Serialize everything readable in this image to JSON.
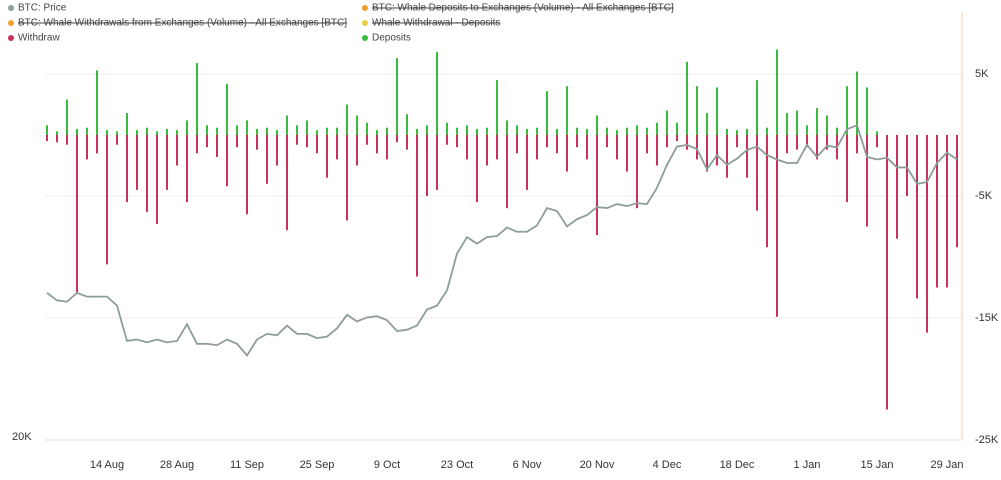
{
  "chart_data": {
    "type": "bar",
    "categories": [
      null,
      null,
      null,
      null,
      null,
      null,
      "14 Aug",
      null,
      null,
      null,
      null,
      null,
      null,
      "28 Aug",
      null,
      null,
      null,
      null,
      null,
      null,
      "11 Sep",
      null,
      null,
      null,
      null,
      null,
      null,
      "25 Sep",
      null,
      null,
      null,
      null,
      null,
      null,
      "9 Oct",
      null,
      null,
      null,
      null,
      null,
      null,
      "23 Oct",
      null,
      null,
      null,
      null,
      null,
      null,
      "6 Nov",
      null,
      null,
      null,
      null,
      null,
      null,
      "20 Nov",
      null,
      null,
      null,
      null,
      null,
      null,
      "4 Dec",
      null,
      null,
      null,
      null,
      null,
      null,
      "18 Dec",
      null,
      null,
      null,
      null,
      null,
      null,
      "1 Jan",
      null,
      null,
      null,
      null,
      null,
      null,
      "15 Jan",
      null,
      null,
      null,
      null,
      null,
      null,
      "29 Jan",
      null
    ],
    "series": [
      {
        "name": "BTC: Price",
        "color": "#8e9c9c",
        "type": "line",
        "axis": "y2",
        "values": [
          29700,
          29100,
          29000,
          29700,
          29400,
          29400,
          29400,
          28700,
          26100,
          26200,
          26000,
          26200,
          26000,
          26100,
          27300,
          25900,
          25900,
          25800,
          26200,
          25900,
          25100,
          26200,
          26600,
          26500,
          27200,
          26600,
          26600,
          26300,
          26400,
          27000,
          28000,
          27500,
          27800,
          27900,
          27600,
          26800,
          26900,
          27200,
          28400,
          28700,
          29900,
          33000,
          34500,
          33900,
          34500,
          34600,
          35400,
          35000,
          35000,
          35600,
          37300,
          37000,
          35500,
          36200,
          36600,
          37400,
          37300,
          37700,
          37500,
          37800,
          37700,
          39400,
          41900,
          44000,
          44200,
          43700,
          41400,
          43000,
          41900,
          42600,
          43600,
          44000,
          43000,
          42500,
          42100,
          42100,
          44200,
          42800,
          44100,
          43900,
          46100,
          46600,
          42800,
          42500,
          42700,
          41600,
          41600,
          39800,
          40000,
          42100,
          43300,
          42500
        ]
      },
      {
        "name": "Withdraw",
        "color": "#c8325a",
        "type": "bar",
        "values": [
          -500,
          -600,
          -800,
          -12900,
          -2000,
          -1500,
          -10600,
          -800,
          -5500,
          -4500,
          -6300,
          -7300,
          -4500,
          -2500,
          -5500,
          -1500,
          -1000,
          -1800,
          -4200,
          -1000,
          -6500,
          -1200,
          -4000,
          -2500,
          -7800,
          -800,
          -1000,
          -1500,
          -3500,
          -2000,
          -7000,
          -2500,
          -800,
          -1500,
          -2000,
          -600,
          -1200,
          -11600,
          -5000,
          -4500,
          -800,
          -1000,
          -2000,
          -5500,
          -2500,
          -2000,
          -6000,
          -1500,
          -4500,
          -2000,
          -1000,
          -1500,
          -3000,
          -1000,
          -2000,
          -8200,
          -1000,
          -2000,
          -3000,
          -6000,
          -1500,
          -2500,
          -1000,
          -500,
          -1200,
          -2000,
          -3000,
          -2500,
          -3500,
          -1000,
          -3500,
          -6200,
          -9200,
          -14900,
          -1500,
          -1200,
          -1000,
          -2000,
          -1200,
          -2000,
          -5500,
          -1500,
          -7500,
          -1000,
          -22500,
          -8500,
          -5000,
          -13400,
          -16200,
          -12500,
          -12500,
          -9200
        ]
      },
      {
        "name": "Deposits",
        "color": "#3cba3c",
        "type": "bar",
        "values": [
          800,
          300,
          2900,
          500,
          600,
          5300,
          400,
          300,
          1800,
          400,
          600,
          300,
          500,
          400,
          1200,
          5900,
          800,
          600,
          4200,
          800,
          1200,
          500,
          600,
          400,
          1600,
          800,
          1200,
          400,
          600,
          600,
          2500,
          1600,
          1000,
          400,
          600,
          6300,
          1700,
          500,
          800,
          6800,
          1000,
          600,
          800,
          500,
          600,
          4500,
          1200,
          800,
          500,
          600,
          3600,
          500,
          4000,
          600,
          500,
          1600,
          600,
          400,
          600,
          800,
          600,
          1000,
          2000,
          1000,
          6000,
          4000,
          1800,
          3900,
          500,
          400,
          500,
          4500,
          600,
          7000,
          1800,
          2000,
          800,
          2200,
          1600,
          600,
          4000,
          5200,
          3900,
          300,
          0,
          0,
          0,
          0,
          0,
          0,
          0,
          0
        ]
      }
    ],
    "hidden_series": [
      {
        "name": "BTC: Whale Deposits to Exchanges (Volume) - All Exchanges [BTC]",
        "color": "#f0a030"
      },
      {
        "name": "BTC: Whale Withdrawals from Exchanges (Volume) - All Exchanges [BTC]",
        "color": "#f0a030"
      },
      {
        "name": "Whale Withdrawal - Deposits",
        "color": "#e6d040"
      }
    ],
    "ylim": [
      -25000,
      10000
    ],
    "yticks": [
      {
        "value": -25000,
        "label": "-25K"
      },
      {
        "value": -15000,
        "label": "-15K"
      },
      {
        "value": -5000,
        "label": "-5K"
      },
      {
        "value": 5000,
        "label": "5K"
      }
    ],
    "y2lim": [
      20000,
      63000
    ],
    "y2ticks": [
      {
        "value": 20000,
        "label": "20K"
      }
    ],
    "y2_log": true,
    "grid": true
  }
}
